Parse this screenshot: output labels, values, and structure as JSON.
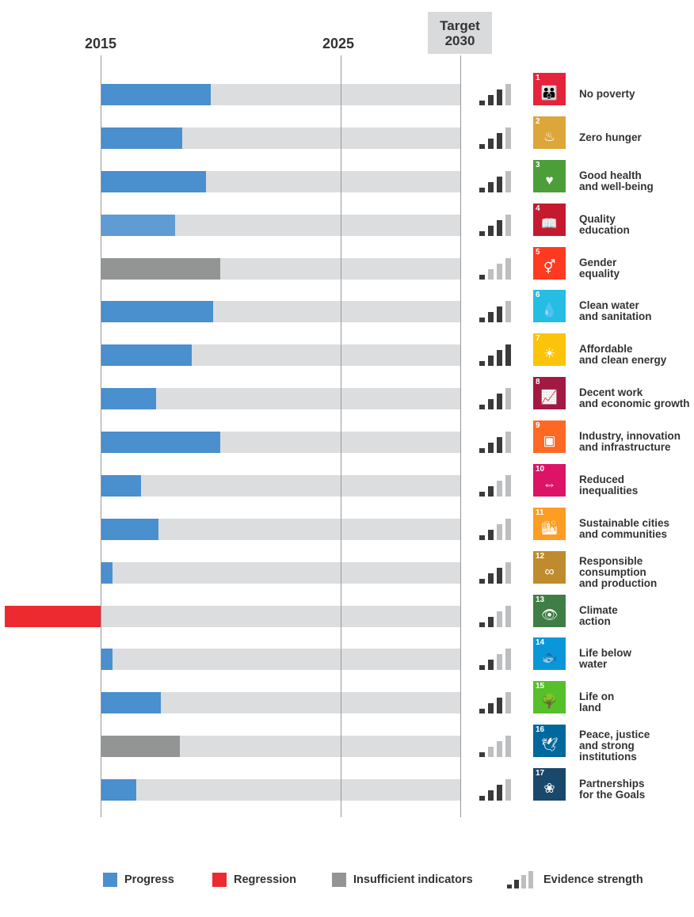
{
  "chart_data": {
    "type": "bar",
    "orientation": "horizontal",
    "x_axis": {
      "range": [
        2015,
        2030
      ],
      "ticks": [
        "2015",
        "2025"
      ],
      "target_label_line1": "Target",
      "target_label_line2": "2030"
    },
    "legend": {
      "placement": "bottom",
      "items": [
        {
          "label": "Progress",
          "color": "#4a8fce"
        },
        {
          "label": "Regression",
          "color": "#ec2a2f"
        },
        {
          "label": "Insufficient indicators",
          "color": "#939494"
        },
        {
          "label": "Evidence strength"
        }
      ]
    },
    "colors": {
      "track": "#dcdddf",
      "evidence_on": "#3a3a3a",
      "evidence_off": "#bdbebf"
    },
    "goals": [
      {
        "number": "1",
        "label": [
          "No poverty"
        ],
        "status": "progress",
        "value": 2019.6,
        "evidence": 3,
        "sdg_color": "#e5243b",
        "glyph": "👪",
        "bar_color": "#4a8fce"
      },
      {
        "number": "2",
        "label": [
          "Zero hunger"
        ],
        "status": "progress",
        "value": 2018.4,
        "evidence": 3,
        "sdg_color": "#dda63a",
        "glyph": "♨",
        "bar_color": "#4a8fce"
      },
      {
        "number": "3",
        "label": [
          "Good health",
          "and well-being"
        ],
        "status": "progress",
        "value": 2019.4,
        "evidence": 3,
        "sdg_color": "#4c9f38",
        "glyph": "♥",
        "bar_color": "#4a8fce"
      },
      {
        "number": "4",
        "label": [
          "Quality",
          "education"
        ],
        "status": "progress",
        "value": 2018.1,
        "evidence": 3,
        "sdg_color": "#c5192d",
        "glyph": "📖",
        "bar_color": "#5f9bd4"
      },
      {
        "number": "5",
        "label": [
          "Gender",
          "equality"
        ],
        "status": "insufficient",
        "value": 2020.0,
        "evidence": 1,
        "sdg_color": "#ff3a21",
        "glyph": "⚥",
        "bar_color": "#939494"
      },
      {
        "number": "6",
        "label": [
          "Clean water",
          "and sanitation"
        ],
        "status": "progress",
        "value": 2019.7,
        "evidence": 3,
        "sdg_color": "#26bde2",
        "glyph": "💧",
        "bar_color": "#4a8fce"
      },
      {
        "number": "7",
        "label": [
          "Affordable",
          "and clean energy"
        ],
        "status": "progress",
        "value": 2018.8,
        "evidence": 4,
        "sdg_color": "#fcc30b",
        "glyph": "☀",
        "bar_color": "#4a8fce"
      },
      {
        "number": "8",
        "label": [
          "Decent work",
          "and economic growth"
        ],
        "status": "progress",
        "value": 2017.3,
        "evidence": 3,
        "sdg_color": "#a21942",
        "glyph": "📈",
        "bar_color": "#4a8fce"
      },
      {
        "number": "9",
        "label": [
          "Industry, innovation",
          "and infrastructure"
        ],
        "status": "progress",
        "value": 2020.0,
        "evidence": 3,
        "sdg_color": "#fd6925",
        "glyph": "▣",
        "bar_color": "#4a8fce"
      },
      {
        "number": "10",
        "label": [
          "Reduced",
          "inequalities"
        ],
        "status": "progress",
        "value": 2016.7,
        "evidence": 2,
        "sdg_color": "#dd1367",
        "glyph": "⇔",
        "bar_color": "#4a8fce"
      },
      {
        "number": "11",
        "label": [
          "Sustainable cities",
          "and communities"
        ],
        "status": "progress",
        "value": 2017.4,
        "evidence": 2,
        "sdg_color": "#fd9d24",
        "glyph": "🏙",
        "bar_color": "#4a8fce"
      },
      {
        "number": "12",
        "label": [
          "Responsible",
          "consumption",
          "and production"
        ],
        "status": "progress",
        "value": 2015.5,
        "evidence": 3,
        "sdg_color": "#bf8b2e",
        "glyph": "∞",
        "bar_color": "#4a8fce"
      },
      {
        "number": "13",
        "label": [
          "Climate",
          "action"
        ],
        "status": "regression",
        "value": 2011.0,
        "evidence": 2,
        "sdg_color": "#3f7e44",
        "glyph": "👁",
        "bar_color": "#ec2a2f"
      },
      {
        "number": "14",
        "label": [
          "Life below",
          "water"
        ],
        "status": "progress",
        "value": 2015.5,
        "evidence": 2,
        "sdg_color": "#0a97d9",
        "glyph": "🐟",
        "bar_color": "#4a8fce"
      },
      {
        "number": "15",
        "label": [
          "Life on",
          "land"
        ],
        "status": "progress",
        "value": 2017.5,
        "evidence": 3,
        "sdg_color": "#56c02b",
        "glyph": "🌳",
        "bar_color": "#4a8fce"
      },
      {
        "number": "16",
        "label": [
          "Peace, justice",
          "and strong",
          "institutions"
        ],
        "status": "insufficient",
        "value": 2018.3,
        "evidence": 1,
        "sdg_color": "#00689d",
        "glyph": "🕊",
        "bar_color": "#939494"
      },
      {
        "number": "17",
        "label": [
          "Partnerships",
          "for the Goals"
        ],
        "status": "progress",
        "value": 2016.5,
        "evidence": 3,
        "sdg_color": "#19486a",
        "glyph": "❀",
        "bar_color": "#4a8fce"
      }
    ]
  }
}
